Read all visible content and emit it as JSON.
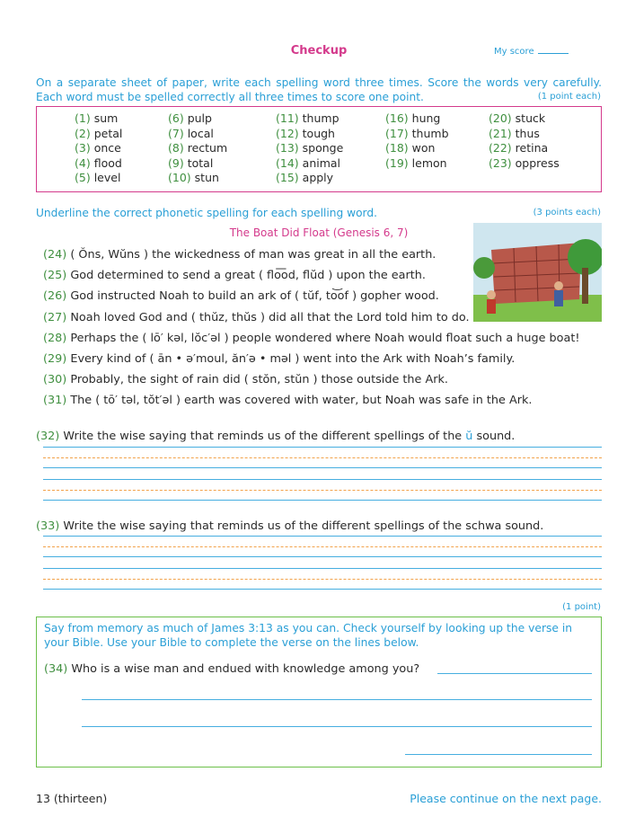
{
  "header": {
    "title": "Checkup",
    "score_label": "My score"
  },
  "part1": {
    "instructions": "On a separate sheet of paper, write each spelling word three times. Score the words very carefully. Each word must be spelled correctly all three times to score one point.",
    "points": "(1 point each)",
    "words": [
      [
        {
          "n": "(1)",
          "w": "sum"
        },
        {
          "n": "(2)",
          "w": "petal"
        },
        {
          "n": "(3)",
          "w": "once"
        },
        {
          "n": "(4)",
          "w": "flood"
        },
        {
          "n": "(5)",
          "w": "level"
        }
      ],
      [
        {
          "n": "(6)",
          "w": "pulp"
        },
        {
          "n": "(7)",
          "w": "local"
        },
        {
          "n": "(8)",
          "w": "rectum"
        },
        {
          "n": "(9)",
          "w": "total"
        },
        {
          "n": "(10)",
          "w": "stun"
        }
      ],
      [
        {
          "n": "(11)",
          "w": "thump"
        },
        {
          "n": "(12)",
          "w": "tough"
        },
        {
          "n": "(13)",
          "w": "sponge"
        },
        {
          "n": "(14)",
          "w": "animal"
        },
        {
          "n": "(15)",
          "w": "apply"
        }
      ],
      [
        {
          "n": "(16)",
          "w": "hung"
        },
        {
          "n": "(17)",
          "w": "thumb"
        },
        {
          "n": "(18)",
          "w": "won"
        },
        {
          "n": "(19)",
          "w": "lemon"
        }
      ],
      [
        {
          "n": "(20)",
          "w": "stuck"
        },
        {
          "n": "(21)",
          "w": "thus"
        },
        {
          "n": "(22)",
          "w": "retina"
        },
        {
          "n": "(23)",
          "w": "oppress"
        }
      ]
    ]
  },
  "part2": {
    "instructions": "Underline the correct phonetic spelling for each spelling word.",
    "points": "(3 points each)",
    "story_title": "The Boat Did Float (Genesis 6, 7)",
    "sentences": [
      {
        "n": "(24)",
        "t": "( Ŏns, Wŭns ) the wickedness of man was great in all the earth."
      },
      {
        "n": "(25)",
        "t": "God determined to send a great ( flo͞od, flŭd ) upon the earth."
      },
      {
        "n": "(26)",
        "t": "God instructed Noah to build an ark of ( tŭf, to͝of ) gopher wood."
      },
      {
        "n": "(27)",
        "t": "Noah loved God and ( thŭz, thŭs ) did all that the Lord told him to do."
      },
      {
        "n": "(28)",
        "t": "Perhaps the ( lō′ kəl, lŏc′əl ) people wondered where Noah would float such a huge boat!"
      },
      {
        "n": "(29)",
        "t": "Every kind of ( ān • ə′moul, ăn′ə • məl ) went into the Ark with Noah’s family."
      },
      {
        "n": "(30)",
        "t": "Probably, the sight of rain did ( stŏn, stŭn ) those outside the Ark."
      },
      {
        "n": "(31)",
        "t": "The ( tō′ təl, tŏt′əl ) earth was covered with water, but Noah was safe in the Ark."
      }
    ]
  },
  "q32": {
    "n": "(32)",
    "t1": "Write the wise saying that reminds us of the different spellings of the ",
    "symbol": "ŭ",
    "t2": " sound."
  },
  "q33": {
    "n": "(33)",
    "t": "Write the wise saying that reminds us of the different spellings of the schwa sound."
  },
  "part3": {
    "points": "(1 point)",
    "instructions": "Say from memory as much of James 3:13 as you can. Check yourself by looking up the verse in your Bible. Use your Bible to complete the verse on the lines below.",
    "q_n": "(34)",
    "q": "Who is a wise man and endued with knowledge among you?"
  },
  "footer": {
    "page": "13 (thirteen)",
    "continue": "Please continue on the next page."
  },
  "colors": {
    "title": "#d43a8c",
    "instructions": "#2a9fd6",
    "numbers": "#3f8f3f",
    "box1": "#d43a8c",
    "box2": "#6cbf4a",
    "dash": "#f2a24a"
  }
}
